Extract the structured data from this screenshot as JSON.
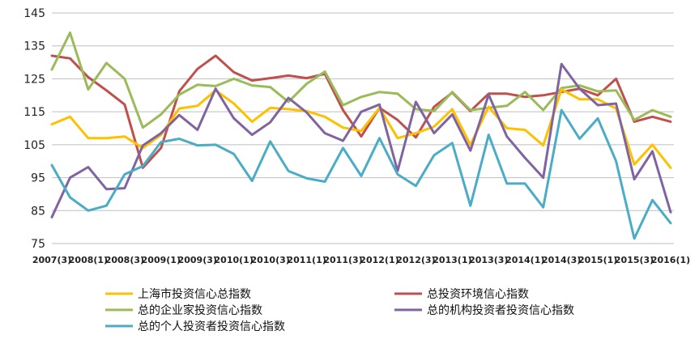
{
  "chart_data": {
    "type": "line",
    "title": "",
    "xlabel": "",
    "ylabel": "",
    "ylim": [
      75,
      145
    ],
    "yticks": [
      75,
      85,
      95,
      105,
      115,
      125,
      135,
      145
    ],
    "grid": "horizontal",
    "legend_position": "bottom",
    "x": [
      "2007(3)",
      "2007(4)",
      "2008(1)",
      "2008(2)",
      "2008(3)",
      "2008(4)",
      "2009(1)",
      "2009(2)",
      "2009(3)",
      "2009(4)",
      "2010(1)",
      "2010(2)",
      "2010(3)",
      "2010(4)",
      "2011(1)",
      "2011(2)",
      "2011(3)",
      "2011(4)",
      "2012(1)",
      "2012(2)",
      "2012(3)",
      "2012(4)",
      "2013(1)",
      "2013(2)",
      "2013(3)",
      "2013(4)",
      "2014(1)",
      "2014(2)",
      "2014(3)",
      "2014(4)",
      "2015(1)",
      "2015(2)",
      "2015(3)",
      "2015(4)",
      "2016(1)"
    ],
    "xtick_labels": [
      "2007(3)",
      "2008(1)",
      "2008(3)",
      "2009(1)",
      "2009(3)",
      "2010(1)",
      "2010(3)",
      "2011(1)",
      "2011(3)",
      "2012(1)",
      "2012(3)",
      "2013(1)",
      "2013(3)",
      "2014(1)",
      "2014(3)",
      "2015(1)",
      "2015(3)",
      "2016(1)"
    ],
    "series": [
      {
        "name": "上海市投资信心总指数",
        "color": "#FFC000",
        "values": [
          111.2,
          113.5,
          107,
          107,
          107.5,
          104,
          108,
          116,
          116.8,
          121.5,
          117.5,
          112,
          116.2,
          115.8,
          115.2,
          113.5,
          110.2,
          109.2,
          116.2,
          107,
          108.5,
          110.5,
          115.8,
          105,
          116.5,
          110,
          109.5,
          104.8,
          121.8,
          118.8,
          118.8,
          116,
          99,
          105,
          98
        ]
      },
      {
        "name": "总投资环境信心指数",
        "color": "#C0504D",
        "values": [
          132,
          131.2,
          125.5,
          121.5,
          117.2,
          98,
          104,
          121.2,
          128,
          132,
          127,
          124.5,
          125.2,
          126,
          125.2,
          126.5,
          115.5,
          107.5,
          116.2,
          112.5,
          107.2,
          116.5,
          120.8,
          115.2,
          120.5,
          120.5,
          119.5,
          120,
          121,
          122,
          120,
          125,
          112,
          113.5,
          112
        ]
      },
      {
        "name": "总的企业家投资信心指数",
        "color": "#9BBB59",
        "values": [
          127.8,
          139,
          121.8,
          129.8,
          125,
          110.2,
          114.2,
          120.2,
          123.2,
          122.8,
          125,
          123,
          122.5,
          118,
          123.5,
          127.2,
          117,
          119.5,
          121,
          120.5,
          115.8,
          115.2,
          121,
          115.5,
          116.2,
          116.8,
          121,
          115.5,
          122.2,
          123,
          121.2,
          121.5,
          112.5,
          115.5,
          113.5
        ]
      },
      {
        "name": "总的机构投资者投资信心指数",
        "color": "#8064A2",
        "values": [
          83,
          95,
          98.2,
          91.5,
          91.8,
          104.8,
          108.5,
          114,
          109.5,
          122,
          113,
          108,
          111.8,
          119.2,
          114.8,
          108.5,
          106.2,
          115,
          117.2,
          97,
          118,
          108.5,
          114.2,
          103.2,
          120.2,
          107.5,
          101,
          95,
          129.5,
          122,
          117,
          117.5,
          94.5,
          103,
          84.5
        ]
      },
      {
        "name": "总的个人投资者投资信心指数",
        "color": "#4BACC6",
        "values": [
          98.8,
          89,
          85,
          86.5,
          96,
          98.5,
          105.8,
          106.8,
          104.8,
          105,
          102.2,
          94,
          106,
          97,
          94.8,
          93.8,
          104,
          95.5,
          107,
          96,
          92.5,
          101.8,
          105.5,
          86.5,
          108,
          93.2,
          93.2,
          86,
          115.5,
          106.8,
          113,
          100,
          76.5,
          88.2,
          81.2
        ]
      }
    ]
  }
}
